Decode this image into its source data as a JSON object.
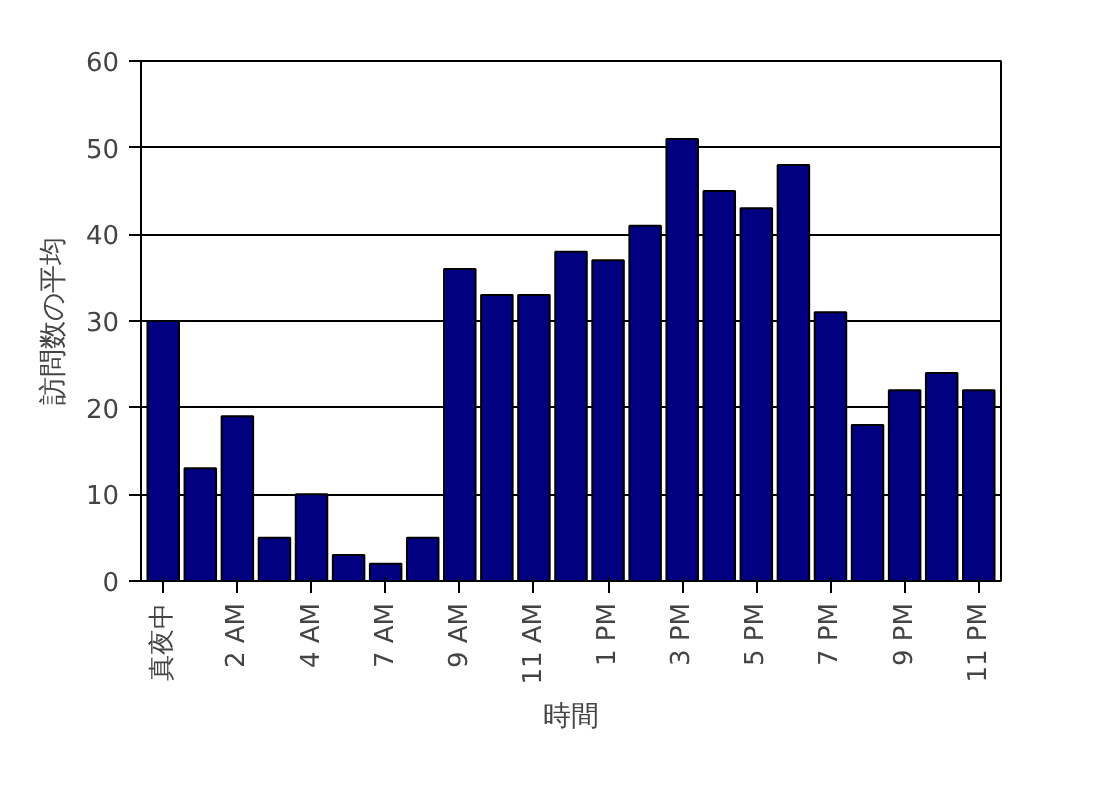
{
  "chart_data": {
    "type": "bar",
    "xlabel": "時間",
    "ylabel": "訪問数の平均",
    "categories": [
      "真夜中",
      null,
      "2 AM",
      null,
      "4 AM",
      null,
      "7 AM",
      null,
      "9 AM",
      null,
      "11 AM",
      null,
      "1 PM",
      null,
      "3 PM",
      null,
      "5 PM",
      null,
      "7 PM",
      null,
      "9 PM",
      null,
      "11 PM"
    ],
    "values": [
      30,
      13,
      19,
      5,
      10,
      3,
      2,
      5,
      36,
      33,
      33,
      38,
      37,
      41,
      51,
      45,
      43,
      48,
      31,
      18,
      22,
      24,
      22
    ],
    "color": "#000080",
    "ylim": [
      0,
      60
    ],
    "yticks": [
      0,
      10,
      20,
      30,
      40,
      50,
      60
    ],
    "grid": "y"
  }
}
